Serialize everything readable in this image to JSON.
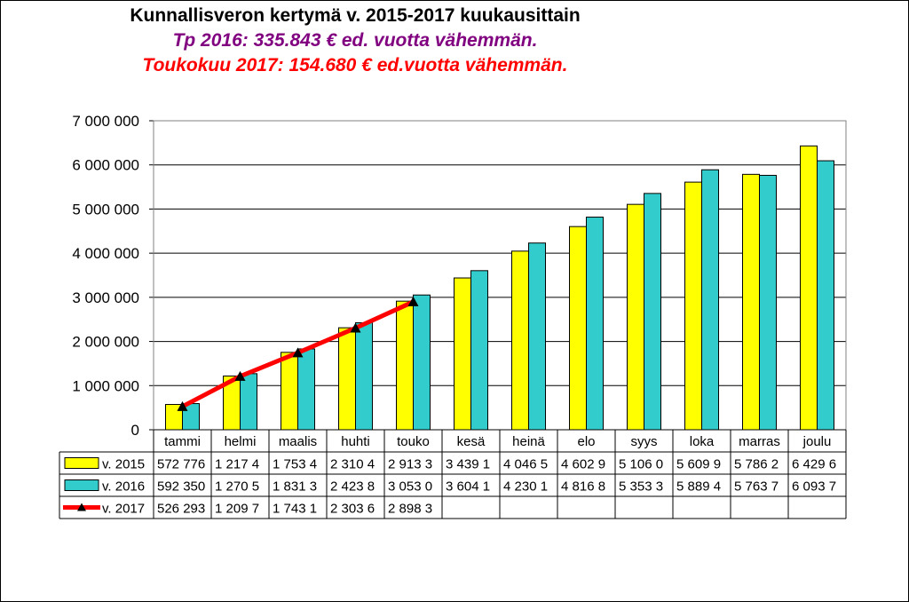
{
  "titles": {
    "main": "Kunnallisveron kertymä v. 2015-2017 kuukausittain",
    "line2": "Tp 2016: 335.843 € ed. vuotta vähemmän.",
    "line3": "Toukokuu 2017: 154.680 € ed.vuotta vähemmän."
  },
  "colors": {
    "v2015": "#ffff00",
    "v2016": "#33cccc",
    "v2017": "#ff0000",
    "title2": "#800080",
    "title3": "#ff0000"
  },
  "chart_data": {
    "type": "bar",
    "title": "Kunnallisveron kertymä v. 2015-2017 kuukausittain",
    "categories": [
      "tammi",
      "helmi",
      "maalis",
      "huhti",
      "touko",
      "kesä",
      "heinä",
      "elo",
      "syys",
      "loka",
      "marras",
      "joulu"
    ],
    "ylim": [
      0,
      7000000
    ],
    "yticks": [
      {
        "value": 0,
        "label": "0"
      },
      {
        "value": 1000000,
        "label": "1 000 000"
      },
      {
        "value": 2000000,
        "label": "2 000 000"
      },
      {
        "value": 3000000,
        "label": "3 000 000"
      },
      {
        "value": 4000000,
        "label": "4 000 000"
      },
      {
        "value": 5000000,
        "label": "5 000 000"
      },
      {
        "value": 6000000,
        "label": "6 000 000"
      },
      {
        "value": 7000000,
        "label": "7 000 000"
      }
    ],
    "grid": true,
    "legend": "data-table",
    "series": [
      {
        "name": "v. 2015",
        "kind": "bar",
        "color": "#ffff00",
        "values": [
          572776,
          1217400,
          1753400,
          2310400,
          2913300,
          3439100,
          4046500,
          4602900,
          5106000,
          5609900,
          5786200,
          6429600
        ],
        "table_labels": [
          "572 776",
          "1 217 4",
          "1 753 4",
          "2 310 4",
          "2 913 3",
          "3 439 1",
          "4 046 5",
          "4 602 9",
          "5 106 0",
          "5 609 9",
          "5 786 2",
          "6 429 6"
        ]
      },
      {
        "name": "v. 2016",
        "kind": "bar",
        "color": "#33cccc",
        "values": [
          592350,
          1270500,
          1831300,
          2423800,
          3053000,
          3604100,
          4230100,
          4816800,
          5353300,
          5889400,
          5763700,
          6093700
        ],
        "table_labels": [
          "592 350",
          "1 270 5",
          "1 831 3",
          "2 423 8",
          "3 053 0",
          "3 604 1",
          "4 230 1",
          "4 816 8",
          "5 353 3",
          "5 889 4",
          "5 763 7",
          "6 093 7"
        ]
      },
      {
        "name": "v. 2017",
        "kind": "line",
        "color": "#ff0000",
        "values": [
          526293,
          1209700,
          1743100,
          2303600,
          2898300,
          null,
          null,
          null,
          null,
          null,
          null,
          null
        ],
        "table_labels": [
          "526 293",
          "1 209 7",
          "1 743 1",
          "2 303 6",
          "2 898 3",
          "",
          "",
          "",
          "",
          "",
          "",
          ""
        ]
      }
    ]
  }
}
